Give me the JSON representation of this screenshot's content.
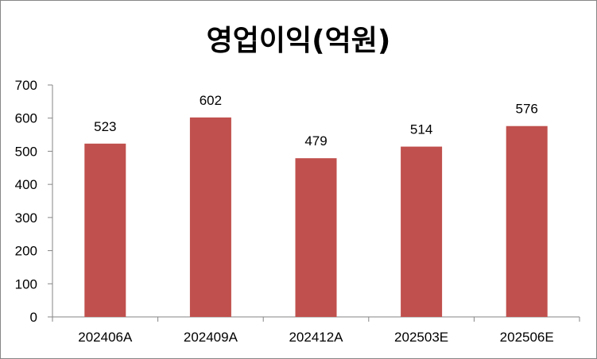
{
  "chart_data": {
    "type": "bar",
    "title": "영업이익(억원)",
    "categories": [
      "202406A",
      "202409A",
      "202412A",
      "202503E",
      "202506E"
    ],
    "values": [
      523,
      602,
      479,
      514,
      576
    ],
    "ylim": [
      0,
      700
    ],
    "yticks": [
      0,
      100,
      200,
      300,
      400,
      500,
      600,
      700
    ],
    "bar_color": "#c0504d",
    "grid": false,
    "legend": "none",
    "data_labels": true
  }
}
